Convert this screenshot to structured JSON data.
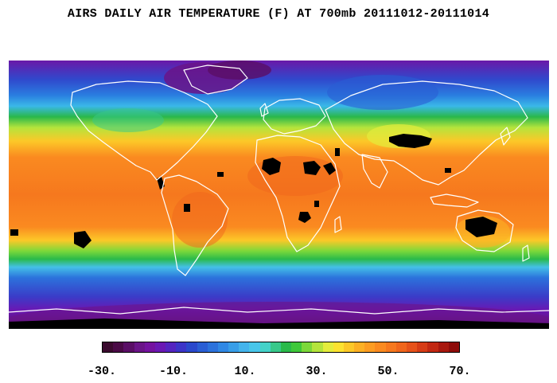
{
  "title": "AIRS DAILY AIR TEMPERATURE (F) AT 700mb 20111012-20111014",
  "colorbar": {
    "tick_labels": [
      "-30.",
      "-10.",
      "10.",
      "30.",
      "50.",
      "70."
    ],
    "tick_values": [
      -30,
      -10,
      10,
      30,
      50,
      70
    ],
    "range": [
      -30,
      70
    ],
    "colors": [
      "#3a0a2e",
      "#4a0a46",
      "#5a0e66",
      "#6a1488",
      "#7412a0",
      "#6a18b4",
      "#5424c0",
      "#3c34c8",
      "#2a48cc",
      "#2a5ed4",
      "#2c72dc",
      "#3088e4",
      "#389ee8",
      "#44b4ec",
      "#48c6ea",
      "#44d2c8",
      "#38c88a",
      "#2aba4a",
      "#3ec83a",
      "#7cd83a",
      "#b4e43c",
      "#e4ec3c",
      "#fce230",
      "#fcc828",
      "#fcb024",
      "#fc9c22",
      "#fa8a20",
      "#f6781e",
      "#f0661c",
      "#e6521a",
      "#d63c16",
      "#c22812",
      "#a8180e",
      "#8e0c0a"
    ]
  },
  "map": {
    "variable": "air temperature",
    "units": "F",
    "pressure_level": "700mb",
    "date_range": "20111012-20111014",
    "missing_data_color": "#000000",
    "coastline_color": "#ffffff"
  }
}
